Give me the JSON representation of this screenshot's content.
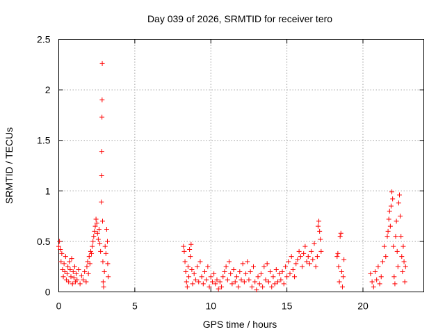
{
  "chart_data": {
    "type": "scatter",
    "title": "Day 039 of 2026, SRMTID for receiver tero",
    "xlabel": "GPS time / hours",
    "ylabel": "SRMTID / TECUs",
    "xlim": [
      0,
      24
    ],
    "ylim": [
      0,
      2.5
    ],
    "xticks": [
      0,
      5,
      10,
      15,
      20
    ],
    "xtick_labels": [
      "0",
      "5",
      "10",
      "15",
      "20"
    ],
    "yticks": [
      0,
      0.5,
      1,
      1.5,
      2,
      2.5
    ],
    "ytick_labels": [
      "0",
      "0.5",
      "1",
      "1.5",
      "2",
      "2.5"
    ],
    "grid": true,
    "marker": "+",
    "color": "#ff0000",
    "series": [
      {
        "name": "SRMTID",
        "points": [
          [
            0.0,
            0.45
          ],
          [
            0.05,
            0.5
          ],
          [
            0.1,
            0.42
          ],
          [
            0.15,
            0.3
          ],
          [
            0.2,
            0.38
          ],
          [
            0.25,
            0.22
          ],
          [
            0.3,
            0.15
          ],
          [
            0.35,
            0.28
          ],
          [
            0.4,
            0.2
          ],
          [
            0.45,
            0.35
          ],
          [
            0.5,
            0.12
          ],
          [
            0.55,
            0.18
          ],
          [
            0.6,
            0.25
          ],
          [
            0.65,
            0.1
          ],
          [
            0.7,
            0.3
          ],
          [
            0.75,
            0.22
          ],
          [
            0.8,
            0.15
          ],
          [
            0.85,
            0.33
          ],
          [
            0.9,
            0.08
          ],
          [
            0.95,
            0.2
          ],
          [
            1.0,
            0.14
          ],
          [
            1.05,
            0.25
          ],
          [
            1.1,
            0.1
          ],
          [
            1.15,
            0.18
          ],
          [
            1.2,
            0.12
          ],
          [
            1.3,
            0.22
          ],
          [
            1.4,
            0.08
          ],
          [
            1.5,
            0.16
          ],
          [
            1.6,
            0.12
          ],
          [
            1.7,
            0.2
          ],
          [
            1.8,
            0.1
          ],
          [
            1.85,
            0.25
          ],
          [
            1.9,
            0.3
          ],
          [
            1.95,
            0.18
          ],
          [
            2.0,
            0.35
          ],
          [
            2.05,
            0.28
          ],
          [
            2.1,
            0.4
          ],
          [
            2.15,
            0.38
          ],
          [
            2.2,
            0.45
          ],
          [
            2.25,
            0.5
          ],
          [
            2.3,
            0.55
          ],
          [
            2.35,
            0.6
          ],
          [
            2.4,
            0.65
          ],
          [
            2.45,
            0.72
          ],
          [
            2.5,
            0.68
          ],
          [
            2.55,
            0.58
          ],
          [
            2.6,
            0.52
          ],
          [
            2.65,
            0.62
          ],
          [
            2.7,
            0.48
          ],
          [
            2.75,
            0.4
          ],
          [
            2.8,
            0.89
          ],
          [
            2.82,
            1.15
          ],
          [
            2.83,
            1.39
          ],
          [
            2.84,
            1.73
          ],
          [
            2.85,
            1.9
          ],
          [
            2.86,
            2.26
          ],
          [
            2.88,
            0.7
          ],
          [
            2.9,
            0.3
          ],
          [
            2.92,
            0.1
          ],
          [
            2.95,
            0.05
          ],
          [
            3.0,
            0.2
          ],
          [
            3.05,
            0.45
          ],
          [
            3.1,
            0.38
          ],
          [
            3.15,
            0.62
          ],
          [
            3.2,
            0.5
          ],
          [
            3.22,
            0.28
          ],
          [
            3.25,
            0.15
          ],
          [
            8.2,
            0.45
          ],
          [
            8.25,
            0.4
          ],
          [
            8.3,
            0.3
          ],
          [
            8.35,
            0.2
          ],
          [
            8.4,
            0.1
          ],
          [
            8.45,
            0.05
          ],
          [
            8.5,
            0.25
          ],
          [
            8.55,
            0.15
          ],
          [
            8.6,
            0.42
          ],
          [
            8.65,
            0.35
          ],
          [
            8.7,
            0.47
          ],
          [
            8.75,
            0.22
          ],
          [
            8.8,
            0.08
          ],
          [
            8.9,
            0.18
          ],
          [
            9.0,
            0.12
          ],
          [
            9.1,
            0.25
          ],
          [
            9.2,
            0.1
          ],
          [
            9.3,
            0.3
          ],
          [
            9.4,
            0.15
          ],
          [
            9.5,
            0.08
          ],
          [
            9.6,
            0.2
          ],
          [
            9.7,
            0.12
          ],
          [
            9.8,
            0.25
          ],
          [
            9.9,
            0.05
          ],
          [
            10.0,
            0.15
          ],
          [
            10.1,
            0.1
          ],
          [
            10.2,
            0.18
          ],
          [
            10.3,
            0.08
          ],
          [
            10.4,
            0.12
          ],
          [
            10.5,
            0.03
          ],
          [
            10.6,
            0.1
          ],
          [
            10.7,
            0.05
          ],
          [
            10.8,
            0.15
          ],
          [
            10.9,
            0.2
          ],
          [
            11.0,
            0.25
          ],
          [
            11.1,
            0.12
          ],
          [
            11.2,
            0.3
          ],
          [
            11.3,
            0.18
          ],
          [
            11.4,
            0.08
          ],
          [
            11.5,
            0.22
          ],
          [
            11.6,
            0.1
          ],
          [
            11.7,
            0.15
          ],
          [
            11.8,
            0.05
          ],
          [
            11.9,
            0.2
          ],
          [
            12.0,
            0.12
          ],
          [
            12.1,
            0.28
          ],
          [
            12.2,
            0.1
          ],
          [
            12.3,
            0.18
          ],
          [
            12.4,
            0.3
          ],
          [
            12.5,
            0.12
          ],
          [
            12.6,
            0.2
          ],
          [
            12.7,
            0.05
          ],
          [
            12.8,
            0.25
          ],
          [
            12.9,
            0.1
          ],
          [
            13.0,
            0.02
          ],
          [
            13.1,
            0.15
          ],
          [
            13.2,
            0.08
          ],
          [
            13.3,
            0.18
          ],
          [
            13.4,
            0.05
          ],
          [
            13.5,
            0.25
          ],
          [
            13.6,
            0.12
          ],
          [
            13.7,
            0.28
          ],
          [
            13.8,
            0.1
          ],
          [
            13.9,
            0.2
          ],
          [
            14.0,
            0.05
          ],
          [
            14.1,
            0.15
          ],
          [
            14.2,
            0.08
          ],
          [
            14.3,
            0.22
          ],
          [
            14.4,
            0.1
          ],
          [
            14.5,
            0.18
          ],
          [
            14.6,
            0.12
          ],
          [
            14.7,
            0.2
          ],
          [
            14.8,
            0.08
          ],
          [
            14.9,
            0.25
          ],
          [
            15.0,
            0.15
          ],
          [
            15.1,
            0.3
          ],
          [
            15.2,
            0.18
          ],
          [
            15.3,
            0.35
          ],
          [
            15.4,
            0.22
          ],
          [
            15.5,
            0.15
          ],
          [
            15.6,
            0.28
          ],
          [
            15.7,
            0.32
          ],
          [
            15.8,
            0.4
          ],
          [
            15.9,
            0.35
          ],
          [
            16.0,
            0.25
          ],
          [
            16.1,
            0.38
          ],
          [
            16.2,
            0.45
          ],
          [
            16.3,
            0.3
          ],
          [
            16.4,
            0.35
          ],
          [
            16.5,
            0.28
          ],
          [
            16.6,
            0.4
          ],
          [
            16.7,
            0.32
          ],
          [
            16.8,
            0.48
          ],
          [
            16.9,
            0.25
          ],
          [
            17.0,
            0.35
          ],
          [
            17.05,
            0.65
          ],
          [
            17.1,
            0.7
          ],
          [
            17.15,
            0.6
          ],
          [
            17.2,
            0.52
          ],
          [
            17.25,
            0.4
          ],
          [
            18.3,
            0.35
          ],
          [
            18.35,
            0.38
          ],
          [
            18.4,
            0.25
          ],
          [
            18.45,
            0.1
          ],
          [
            18.5,
            0.55
          ],
          [
            18.55,
            0.58
          ],
          [
            18.6,
            0.2
          ],
          [
            18.65,
            0.05
          ],
          [
            18.7,
            0.15
          ],
          [
            18.75,
            0.32
          ],
          [
            20.5,
            0.18
          ],
          [
            20.6,
            0.1
          ],
          [
            20.7,
            0.05
          ],
          [
            20.8,
            0.2
          ],
          [
            20.9,
            0.12
          ],
          [
            21.0,
            0.25
          ],
          [
            21.1,
            0.08
          ],
          [
            21.2,
            0.15
          ],
          [
            21.3,
            0.3
          ],
          [
            21.4,
            0.45
          ],
          [
            21.5,
            0.35
          ],
          [
            21.6,
            0.55
          ],
          [
            21.65,
            0.6
          ],
          [
            21.7,
            0.72
          ],
          [
            21.75,
            0.8
          ],
          [
            21.8,
            0.65
          ],
          [
            21.85,
            0.85
          ],
          [
            21.9,
            0.99
          ],
          [
            21.95,
            0.92
          ],
          [
            22.0,
            0.45
          ],
          [
            22.05,
            0.15
          ],
          [
            22.1,
            0.08
          ],
          [
            22.15,
            0.55
          ],
          [
            22.2,
            0.7
          ],
          [
            22.25,
            0.4
          ],
          [
            22.3,
            0.25
          ],
          [
            22.35,
            0.88
          ],
          [
            22.4,
            0.96
          ],
          [
            22.45,
            0.75
          ],
          [
            22.5,
            0.55
          ],
          [
            22.55,
            0.35
          ],
          [
            22.6,
            0.2
          ],
          [
            22.65,
            0.45
          ],
          [
            22.7,
            0.3
          ],
          [
            22.75,
            0.1
          ],
          [
            22.8,
            0.25
          ]
        ]
      }
    ]
  }
}
